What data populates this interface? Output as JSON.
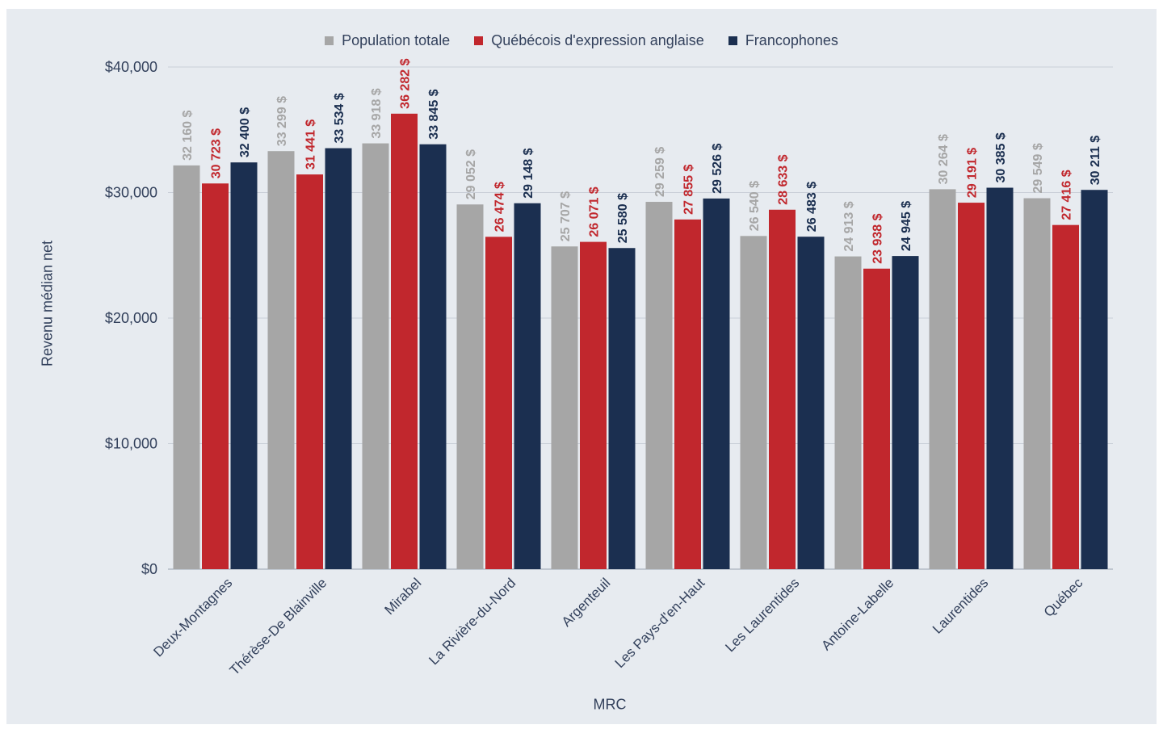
{
  "chart_data": {
    "type": "bar",
    "xlabel": "MRC",
    "ylabel": "Revenu médian net",
    "ylim": [
      0,
      40000
    ],
    "yticks": [
      0,
      10000,
      20000,
      30000,
      40000
    ],
    "ytick_labels": [
      "$0",
      "$10,000",
      "$20,000",
      "$30,000",
      "$40,000"
    ],
    "grid": true,
    "legend_position": "top-center",
    "categories": [
      "Deux-Montagnes",
      "Thérèse-De Blainville",
      "Mirabel",
      "La Rivière-du-Nord",
      "Argenteuil",
      "Les Pays-d'en-Haut",
      "Les Laurentides",
      "Antoine-Labelle",
      "Laurentides",
      "Québec"
    ],
    "series": [
      {
        "name": "Population totale",
        "color": "#a6a6a6",
        "values": [
          32160,
          33299,
          33918,
          29052,
          25707,
          29259,
          26540,
          24913,
          30264,
          29549
        ],
        "labels": [
          "32 160 $",
          "33 299 $",
          "33 918 $",
          "29 052 $",
          "25 707 $",
          "29 259 $",
          "26 540 $",
          "24 913 $",
          "30 264 $",
          "29 549 $"
        ]
      },
      {
        "name": "Québécois d'expression anglaise",
        "color": "#c1272d",
        "values": [
          30723,
          31441,
          36282,
          26474,
          26071,
          27855,
          28633,
          23938,
          29191,
          27416
        ],
        "labels": [
          "30 723 $",
          "31 441 $",
          "36 282 $",
          "26 474 $",
          "26 071 $",
          "27 855 $",
          "28 633 $",
          "23 938 $",
          "29 191 $",
          "27 416 $"
        ]
      },
      {
        "name": "Francophones",
        "color": "#1b2f50",
        "values": [
          32400,
          33534,
          33845,
          29148,
          25580,
          29526,
          26483,
          24945,
          30385,
          30211
        ],
        "labels": [
          "32 400 $",
          "33 534 $",
          "33 845 $",
          "29 148 $",
          "25 580 $",
          "29 526 $",
          "26 483 $",
          "24 945 $",
          "30 385 $",
          "30 211 $"
        ]
      }
    ]
  }
}
